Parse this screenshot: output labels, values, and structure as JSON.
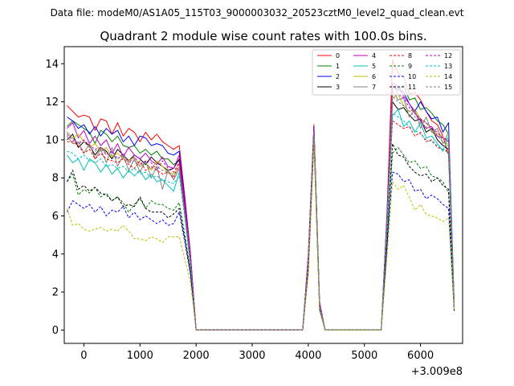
{
  "suptitle": "Data file: modeM0/AS1A05_115T03_9000003032_20523cztM0_level2_quad_clean.evt",
  "title": "Quadrant 2 module wise count rates with 100.0s bins.",
  "x_offset_label": "+3.009e8",
  "chart_data": {
    "type": "line",
    "title": "Quadrant 2 module wise count rates with 100.0s bins.",
    "xlabel": "",
    "ylabel": "",
    "xlim": [
      -350,
      6750
    ],
    "ylim": [
      -0.7,
      14.9
    ],
    "x_offset": "+3.009e8",
    "x_ticks": [
      0,
      1000,
      2000,
      3000,
      4000,
      5000,
      6000
    ],
    "x_tick_labels": [
      "0",
      "1000",
      "2000",
      "3000",
      "4000",
      "5000",
      "6000"
    ],
    "y_ticks": [
      0,
      2,
      4,
      6,
      8,
      10,
      12,
      14
    ],
    "y_tick_labels": [
      "0",
      "2",
      "4",
      "6",
      "8",
      "10",
      "12",
      "14"
    ],
    "grid": false,
    "legend_position": "top-right",
    "legend_columns": 4,
    "x": [
      -300,
      -200,
      -100,
      0,
      100,
      200,
      300,
      400,
      500,
      600,
      700,
      800,
      900,
      1000,
      1100,
      1200,
      1300,
      1400,
      1500,
      1600,
      1700,
      1800,
      1900,
      2000,
      3900,
      4000,
      4100,
      4200,
      4300,
      5300,
      5400,
      5500,
      5600,
      5700,
      5800,
      5900,
      6000,
      6100,
      6200,
      6300,
      6400,
      6500,
      6600
    ],
    "series": [
      {
        "name": "0",
        "color": "#ff0000",
        "style": "solid",
        "values": [
          11.8,
          11.5,
          11.2,
          11.3,
          11.2,
          10.5,
          11.1,
          11.0,
          10.3,
          10.9,
          10.2,
          10.6,
          10.4,
          9.9,
          10.4,
          10.0,
          10.3,
          9.9,
          9.7,
          9.5,
          9.7,
          7.0,
          4.0,
          0.0,
          0.0,
          4.0,
          10.8,
          1.5,
          0.0,
          0.0,
          6.0,
          14.2,
          13.5,
          13.3,
          12.4,
          12.5,
          12.1,
          11.5,
          11.0,
          10.8,
          10.2,
          9.2,
          1.2
        ]
      },
      {
        "name": "1",
        "color": "#008000",
        "style": "solid",
        "values": [
          10.7,
          11.0,
          10.8,
          10.6,
          10.4,
          9.8,
          10.5,
          10.3,
          9.9,
          10.2,
          9.7,
          9.6,
          9.7,
          9.3,
          9.5,
          9.2,
          9.4,
          9.0,
          9.0,
          8.7,
          8.9,
          6.5,
          3.7,
          0.0,
          0.0,
          3.7,
          10.6,
          1.4,
          0.0,
          0.0,
          5.7,
          12.8,
          12.6,
          12.9,
          12.1,
          12.2,
          11.6,
          11.7,
          11.4,
          11.0,
          10.8,
          10.3,
          1.3
        ]
      },
      {
        "name": "2",
        "color": "#0000ff",
        "style": "solid",
        "values": [
          11.2,
          11.0,
          10.6,
          10.8,
          10.3,
          10.7,
          10.2,
          10.6,
          10.3,
          10.5,
          9.9,
          10.2,
          9.7,
          10.2,
          10.1,
          9.7,
          9.8,
          9.7,
          9.3,
          9.2,
          9.4,
          6.8,
          3.9,
          0.0,
          0.0,
          3.8,
          10.7,
          1.4,
          0.0,
          0.0,
          5.9,
          12.8,
          12.7,
          12.5,
          11.9,
          11.5,
          12.0,
          11.5,
          11.1,
          11.2,
          10.4,
          10.9,
          1.4
        ]
      },
      {
        "name": "3",
        "color": "#000000",
        "style": "solid",
        "values": [
          10.0,
          10.3,
          9.6,
          9.9,
          9.7,
          9.2,
          9.6,
          9.4,
          9.0,
          9.5,
          9.2,
          8.9,
          9.2,
          9.0,
          8.7,
          9.1,
          8.8,
          8.6,
          8.4,
          8.5,
          9.0,
          6.3,
          3.5,
          0.0,
          0.0,
          3.6,
          10.5,
          1.3,
          0.0,
          0.0,
          5.5,
          12.0,
          11.6,
          11.7,
          11.3,
          11.0,
          11.1,
          10.4,
          10.6,
          10.0,
          9.7,
          9.5,
          1.3
        ]
      },
      {
        "name": "4",
        "color": "#bf00bf",
        "style": "solid",
        "values": [
          10.6,
          10.9,
          10.1,
          10.5,
          9.8,
          10.2,
          9.7,
          10.0,
          9.3,
          9.8,
          9.1,
          9.6,
          9.2,
          9.0,
          9.3,
          8.9,
          8.7,
          9.1,
          8.6,
          8.5,
          9.2,
          6.6,
          3.8,
          0.0,
          0.0,
          3.9,
          10.6,
          1.4,
          0.0,
          0.0,
          5.8,
          13.0,
          12.8,
          12.3,
          11.9,
          11.4,
          11.0,
          10.6,
          10.7,
          10.2,
          10.1,
          9.9,
          1.4
        ]
      },
      {
        "name": "5",
        "color": "#00bfbf",
        "style": "solid",
        "values": [
          9.2,
          8.8,
          9.0,
          8.4,
          9.0,
          8.8,
          8.3,
          8.7,
          8.2,
          8.5,
          8.0,
          8.4,
          8.1,
          8.4,
          7.9,
          8.2,
          7.8,
          7.9,
          7.6,
          7.3,
          8.3,
          6.0,
          3.4,
          0.0,
          0.0,
          3.5,
          10.4,
          1.2,
          0.0,
          0.0,
          5.2,
          11.3,
          11.6,
          10.7,
          11.0,
          10.4,
          10.9,
          10.1,
          10.2,
          9.8,
          9.4,
          10.2,
          1.2
        ]
      },
      {
        "name": "6",
        "color": "#bfbf00",
        "style": "solid",
        "values": [
          10.4,
          10.1,
          10.3,
          9.9,
          9.6,
          9.8,
          9.4,
          9.6,
          9.1,
          9.3,
          9.0,
          8.9,
          9.1,
          8.6,
          8.8,
          8.4,
          8.9,
          8.6,
          8.3,
          8.2,
          8.6,
          6.2,
          3.6,
          0.0,
          0.0,
          3.6,
          10.4,
          1.3,
          0.0,
          0.0,
          5.6,
          12.2,
          12.4,
          11.8,
          11.5,
          11.6,
          11.1,
          10.9,
          10.5,
          10.3,
          10.2,
          9.6,
          1.3
        ]
      },
      {
        "name": "7",
        "color": "#808080",
        "style": "solid",
        "values": [
          10.2,
          9.8,
          9.9,
          9.3,
          9.8,
          9.0,
          9.5,
          8.8,
          9.6,
          8.6,
          9.2,
          8.4,
          9.0,
          8.3,
          8.9,
          8.0,
          8.6,
          7.4,
          8.4,
          7.9,
          8.5,
          6.1,
          3.5,
          0.0,
          0.0,
          3.6,
          10.5,
          1.3,
          0.0,
          0.0,
          5.4,
          12.6,
          12.1,
          12.2,
          11.2,
          11.6,
          10.6,
          11.2,
          10.4,
          10.6,
          9.8,
          10.4,
          1.3
        ]
      },
      {
        "name": "8",
        "color": "#ff0000",
        "style": "dashed",
        "values": [
          9.9,
          9.9,
          9.7,
          9.3,
          9.5,
          9.0,
          9.3,
          9.0,
          8.9,
          8.8,
          9.0,
          8.7,
          8.5,
          8.9,
          8.4,
          8.6,
          8.4,
          8.2,
          8.3,
          8.0,
          8.8,
          6.2,
          3.5,
          0.0,
          0.0,
          3.5,
          10.4,
          1.2,
          0.0,
          0.0,
          5.5,
          11.0,
          10.8,
          10.6,
          10.7,
          10.2,
          10.4,
          9.9,
          10.0,
          9.6,
          9.5,
          9.4,
          1.1
        ]
      },
      {
        "name": "9",
        "color": "#008000",
        "style": "dashed",
        "values": [
          7.8,
          8.2,
          7.1,
          7.4,
          7.2,
          7.5,
          7.0,
          7.2,
          6.8,
          7.0,
          6.7,
          6.2,
          6.6,
          6.9,
          6.4,
          6.8,
          6.6,
          6.6,
          6.4,
          6.3,
          6.7,
          5.0,
          3.1,
          0.0,
          0.0,
          3.3,
          10.2,
          1.1,
          0.0,
          0.0,
          4.5,
          9.3,
          9.6,
          9.2,
          8.8,
          8.9,
          8.5,
          8.6,
          8.1,
          8.0,
          7.8,
          7.2,
          1.1
        ]
      },
      {
        "name": "10",
        "color": "#0000ff",
        "style": "dashed",
        "values": [
          6.2,
          6.8,
          6.6,
          6.4,
          6.6,
          6.2,
          6.5,
          6.0,
          6.3,
          6.2,
          6.5,
          5.9,
          6.2,
          5.8,
          6.0,
          5.8,
          5.6,
          5.8,
          5.5,
          5.6,
          6.2,
          4.6,
          2.9,
          0.0,
          0.0,
          3.1,
          10.0,
          1.1,
          0.0,
          0.0,
          4.2,
          8.3,
          8.2,
          7.8,
          7.9,
          7.3,
          7.4,
          6.9,
          7.1,
          6.9,
          6.6,
          6.4,
          1.1
        ]
      },
      {
        "name": "11",
        "color": "#000000",
        "style": "dashed",
        "values": [
          7.8,
          8.4,
          7.4,
          7.6,
          7.3,
          7.5,
          7.2,
          7.1,
          6.8,
          7.0,
          6.5,
          6.6,
          6.5,
          7.0,
          6.4,
          6.2,
          6.2,
          6.2,
          5.9,
          6.1,
          6.4,
          4.8,
          3.0,
          0.0,
          0.0,
          3.2,
          10.1,
          1.1,
          0.0,
          0.0,
          4.4,
          9.8,
          9.2,
          9.1,
          8.6,
          8.3,
          8.1,
          8.2,
          7.8,
          8.0,
          7.6,
          7.4,
          1.0
        ]
      },
      {
        "name": "12",
        "color": "#bf00bf",
        "style": "dashed",
        "values": [
          10.3,
          10.0,
          9.8,
          10.0,
          9.7,
          9.5,
          9.6,
          9.2,
          9.4,
          9.0,
          9.3,
          8.8,
          9.1,
          8.7,
          8.9,
          8.8,
          8.4,
          8.9,
          8.5,
          8.3,
          8.8,
          6.4,
          3.6,
          0.0,
          0.0,
          3.7,
          10.5,
          1.3,
          0.0,
          0.0,
          5.6,
          12.9,
          12.4,
          12.2,
          11.7,
          11.4,
          11.1,
          10.9,
          10.6,
          10.4,
          10.1,
          10.0,
          1.3
        ]
      },
      {
        "name": "13",
        "color": "#00bfbf",
        "style": "dashed",
        "values": [
          9.4,
          9.3,
          9.0,
          9.2,
          8.9,
          8.8,
          9.0,
          8.6,
          8.7,
          8.5,
          8.6,
          8.3,
          8.5,
          8.2,
          8.3,
          8.0,
          8.1,
          7.9,
          7.8,
          7.7,
          8.1,
          5.9,
          3.4,
          0.0,
          0.0,
          3.5,
          10.3,
          1.2,
          0.0,
          0.0,
          5.3,
          11.4,
          11.2,
          11.0,
          10.7,
          10.5,
          10.3,
          10.0,
          9.9,
          9.7,
          9.5,
          9.3,
          1.2
        ]
      },
      {
        "name": "14",
        "color": "#bfbf00",
        "style": "dashed",
        "values": [
          6.4,
          5.5,
          5.6,
          5.3,
          5.2,
          5.3,
          5.4,
          5.2,
          5.3,
          5.2,
          5.5,
          5.2,
          4.8,
          4.8,
          4.7,
          4.9,
          4.8,
          4.6,
          4.9,
          4.9,
          4.9,
          3.7,
          2.5,
          0.0,
          0.0,
          2.9,
          9.8,
          1.0,
          0.0,
          0.0,
          3.8,
          7.8,
          7.4,
          7.6,
          7.0,
          6.3,
          6.6,
          6.1,
          6.0,
          5.9,
          5.7,
          5.9,
          1.0
        ]
      },
      {
        "name": "15",
        "color": "#808080",
        "style": "dashed",
        "values": [
          10.4,
          10.1,
          9.8,
          9.9,
          9.6,
          9.4,
          9.6,
          9.3,
          9.2,
          9.0,
          9.2,
          8.8,
          8.9,
          8.6,
          8.8,
          8.5,
          8.6,
          8.4,
          8.3,
          8.1,
          8.5,
          6.2,
          3.5,
          0.0,
          0.0,
          3.6,
          10.4,
          1.3,
          0.0,
          0.0,
          5.5,
          12.3,
          12.0,
          11.8,
          11.5,
          11.2,
          10.9,
          10.7,
          10.4,
          10.2,
          9.9,
          9.8,
          1.2
        ]
      }
    ]
  }
}
